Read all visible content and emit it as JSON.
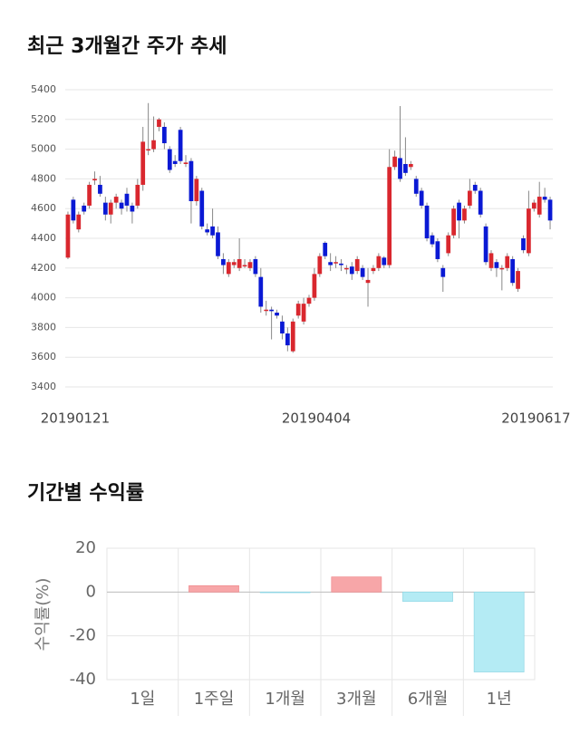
{
  "chart_data": [
    {
      "type": "candlestick",
      "title": "최근 3개월간 주가 추세",
      "categories": [
        "20190121",
        null,
        null,
        null,
        null,
        null,
        null,
        null,
        null,
        null,
        null,
        null,
        null,
        null,
        null,
        null,
        null,
        null,
        null,
        null,
        null,
        null,
        null,
        null,
        null,
        null,
        null,
        null,
        null,
        null,
        null,
        null,
        null,
        null,
        null,
        null,
        null,
        null,
        null,
        null,
        null,
        null,
        null,
        null,
        null,
        "20190404",
        null,
        null,
        null,
        null,
        null,
        null,
        null,
        null,
        null,
        null,
        null,
        null,
        null,
        null,
        null,
        null,
        null,
        null,
        null,
        null,
        null,
        null,
        null,
        null,
        null,
        null,
        null,
        null,
        null,
        null,
        null,
        null,
        null,
        null,
        null,
        null,
        null,
        null,
        null,
        null,
        "20190617",
        null,
        null,
        null,
        null
      ],
      "open": [
        4270,
        4660,
        4460,
        4620,
        4620,
        4790,
        4760,
        4640,
        4560,
        4640,
        4640,
        4700,
        4620,
        4620,
        4760,
        5000,
        5000,
        5150,
        5150,
        5000,
        4920,
        5130,
        4900,
        4920,
        4650,
        4720,
        4460,
        4480,
        4440,
        4260,
        4160,
        4220,
        4200,
        4220,
        4200,
        4260,
        4140,
        3920,
        3920,
        3900,
        3840,
        3760,
        3640,
        3880,
        3840,
        3960,
        4000,
        4160,
        4370,
        4240,
        4240,
        4230,
        4200,
        4210,
        4180,
        4200,
        4100,
        4180,
        4200,
        4270,
        4220,
        4880,
        4940,
        4900,
        4880,
        4800,
        4720,
        4620,
        4420,
        4380,
        4200,
        4300,
        4420,
        4640,
        4520,
        4620,
        4760,
        4720,
        4480,
        4200,
        4240,
        4200,
        4200,
        4260,
        4060,
        4400,
        4300,
        4600,
        4560,
        4680,
        4660
      ],
      "close": [
        4560,
        4520,
        4560,
        4580,
        4760,
        4800,
        4700,
        4560,
        4640,
        4680,
        4600,
        4620,
        4580,
        4760,
        5050,
        5000,
        5060,
        5200,
        5040,
        4860,
        4900,
        4920,
        4910,
        4650,
        4800,
        4480,
        4440,
        4420,
        4280,
        4220,
        4240,
        4240,
        4260,
        4220,
        4240,
        4160,
        3940,
        3920,
        3910,
        3880,
        3760,
        3680,
        3840,
        3960,
        3960,
        4000,
        4160,
        4280,
        4280,
        4220,
        4240,
        4220,
        4200,
        4160,
        4260,
        4140,
        4120,
        4200,
        4280,
        4220,
        4880,
        4950,
        4800,
        4840,
        4900,
        4700,
        4620,
        4400,
        4360,
        4260,
        4140,
        4420,
        4600,
        4520,
        4600,
        4720,
        4720,
        4560,
        4240,
        4300,
        4200,
        4200,
        4280,
        4100,
        4180,
        4320,
        4600,
        4640,
        4680,
        4660,
        4520
      ],
      "high": [
        4580,
        4680,
        4580,
        4640,
        4780,
        4850,
        4820,
        4680,
        4660,
        4700,
        4660,
        4740,
        4640,
        4800,
        5150,
        5310,
        5220,
        5210,
        5180,
        5020,
        4960,
        5150,
        4960,
        4940,
        4820,
        4740,
        4500,
        4600,
        4480,
        4300,
        4260,
        4260,
        4400,
        4260,
        4260,
        4280,
        4200,
        3980,
        3940,
        3920,
        3880,
        3800,
        3860,
        3980,
        4000,
        4020,
        4200,
        4300,
        4380,
        4300,
        4280,
        4260,
        4220,
        4240,
        4280,
        4220,
        4200,
        4220,
        4300,
        4280,
        5000,
        4990,
        5290,
        5080,
        4920,
        4820,
        4740,
        4640,
        4440,
        4400,
        4220,
        4440,
        4620,
        4660,
        4620,
        4800,
        4780,
        4740,
        4500,
        4320,
        4260,
        4220,
        4300,
        4280,
        4200,
        4420,
        4720,
        4660,
        4780,
        4740,
        4680
      ],
      "low": [
        4260,
        4500,
        4440,
        4560,
        4600,
        4760,
        4680,
        4520,
        4500,
        4600,
        4560,
        4580,
        4500,
        4600,
        4720,
        4960,
        4980,
        5120,
        5000,
        4840,
        4880,
        4900,
        4880,
        4500,
        4620,
        4460,
        4420,
        4400,
        4260,
        4160,
        4140,
        4200,
        4180,
        4200,
        4180,
        4140,
        3900,
        3880,
        3720,
        3860,
        3720,
        3640,
        3630,
        3860,
        3820,
        3940,
        3980,
        4140,
        4260,
        4180,
        4200,
        4180,
        4160,
        4120,
        4160,
        4120,
        3940,
        4160,
        4180,
        4200,
        4200,
        4860,
        4780,
        4820,
        4860,
        4680,
        4600,
        4380,
        4340,
        4240,
        4040,
        4280,
        4400,
        4400,
        4500,
        4600,
        4700,
        4540,
        4220,
        4180,
        4140,
        4050,
        4180,
        4080,
        4040,
        4300,
        4280,
        4580,
        4540,
        4640,
        4460
      ],
      "up_color": "#d9272e",
      "down_color": "#0a19d4",
      "ylim": [
        3400,
        5400
      ],
      "yticks": [
        3400,
        3600,
        3800,
        4000,
        4200,
        4400,
        4600,
        4800,
        5000,
        5200,
        5400
      ],
      "grid": true
    },
    {
      "type": "bar",
      "title": "기간별 수익률",
      "y_label": "수익률(%)",
      "categories": [
        "1일",
        "1주일",
        "1개월",
        "3개월",
        "6개월",
        "1년"
      ],
      "values": [
        0,
        2.9,
        -0.3,
        6.9,
        -4.3,
        -36.5
      ],
      "pos_color": "#f7a6a8",
      "neg_color": "#b4ebf4",
      "ylim": [
        -40,
        20
      ],
      "yticks": [
        20,
        0,
        -20,
        -40
      ],
      "grid": true
    }
  ]
}
